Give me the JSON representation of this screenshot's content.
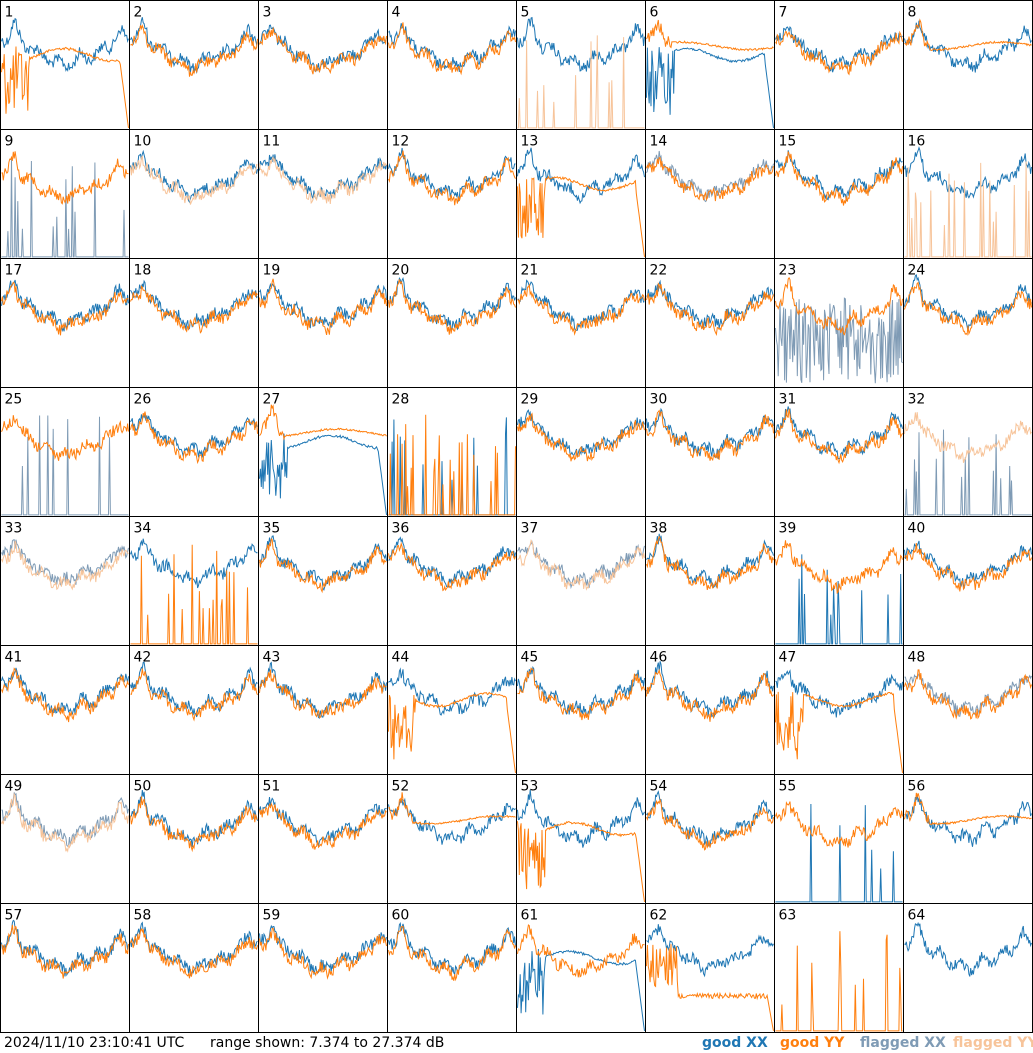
{
  "footer": {
    "timestamp": "2024/11/10 23:10:41 UTC",
    "range": "range shown: 7.374 to 27.374 dB"
  },
  "legend": [
    {
      "key": "good_xx",
      "label": "good XX",
      "color": "#1f77b4"
    },
    {
      "key": "good_yy",
      "label": "good YY",
      "color": "#ff7f0e"
    },
    {
      "key": "flagged_xx",
      "label": "flagged XX",
      "color": "#7f9bb5"
    },
    {
      "key": "flagged_yy",
      "label": "flagged YY",
      "color": "#f7c49a"
    }
  ],
  "chart_data": {
    "type": "line",
    "panel_grid": {
      "rows": 8,
      "cols": 8
    },
    "ylim": [
      7.374,
      27.374
    ],
    "y_unit": "dB",
    "panels": [
      {
        "id": "1",
        "xx": "good",
        "yy": "good",
        "xx_shape": "normal",
        "yy_shape": "rolloff"
      },
      {
        "id": "2",
        "xx": "good",
        "yy": "good",
        "xx_shape": "normal",
        "yy_shape": "normal"
      },
      {
        "id": "3",
        "xx": "good",
        "yy": "good",
        "xx_shape": "normal",
        "yy_shape": "normal"
      },
      {
        "id": "4",
        "xx": "good",
        "yy": "good",
        "xx_shape": "normal",
        "yy_shape": "normal"
      },
      {
        "id": "5",
        "xx": "good",
        "yy": "flagged",
        "xx_shape": "normal",
        "yy_shape": "spikes"
      },
      {
        "id": "6",
        "xx": "good",
        "yy": "good",
        "xx_shape": "rolloff",
        "yy_shape": "flat"
      },
      {
        "id": "7",
        "xx": "good",
        "yy": "good",
        "xx_shape": "normal",
        "yy_shape": "normal"
      },
      {
        "id": "8",
        "xx": "good",
        "yy": "good",
        "xx_shape": "normal",
        "yy_shape": "flat"
      },
      {
        "id": "9",
        "xx": "flagged",
        "yy": "good",
        "xx_shape": "spikes",
        "yy_shape": "normal"
      },
      {
        "id": "10",
        "xx": "good",
        "yy": "flagged",
        "xx_shape": "normal",
        "yy_shape": "normal"
      },
      {
        "id": "11",
        "xx": "good",
        "yy": "flagged",
        "xx_shape": "normal",
        "yy_shape": "normal"
      },
      {
        "id": "12",
        "xx": "good",
        "yy": "good",
        "xx_shape": "normal",
        "yy_shape": "normal"
      },
      {
        "id": "13",
        "xx": "good",
        "yy": "good",
        "xx_shape": "normal",
        "yy_shape": "rolloff"
      },
      {
        "id": "14",
        "xx": "flagged",
        "yy": "good",
        "xx_shape": "normal",
        "yy_shape": "normal"
      },
      {
        "id": "15",
        "xx": "good",
        "yy": "good",
        "xx_shape": "normal",
        "yy_shape": "normal"
      },
      {
        "id": "16",
        "xx": "good",
        "yy": "flagged",
        "xx_shape": "normal",
        "yy_shape": "spikes"
      },
      {
        "id": "17",
        "xx": "good",
        "yy": "good",
        "xx_shape": "normal",
        "yy_shape": "normal"
      },
      {
        "id": "18",
        "xx": "good",
        "yy": "good",
        "xx_shape": "normal",
        "yy_shape": "normal"
      },
      {
        "id": "19",
        "xx": "good",
        "yy": "good",
        "xx_shape": "normal",
        "yy_shape": "normal"
      },
      {
        "id": "20",
        "xx": "good",
        "yy": "good",
        "xx_shape": "normal",
        "yy_shape": "normal"
      },
      {
        "id": "21",
        "xx": "good",
        "yy": "good",
        "xx_shape": "normal",
        "yy_shape": "normal"
      },
      {
        "id": "22",
        "xx": "good",
        "yy": "good",
        "xx_shape": "normal",
        "yy_shape": "normal"
      },
      {
        "id": "23",
        "xx": "flagged",
        "yy": "good",
        "xx_shape": "noise",
        "yy_shape": "normal"
      },
      {
        "id": "24",
        "xx": "good",
        "yy": "good",
        "xx_shape": "normal",
        "yy_shape": "normal"
      },
      {
        "id": "25",
        "xx": "flagged",
        "yy": "good",
        "xx_shape": "spikes",
        "yy_shape": "normal"
      },
      {
        "id": "26",
        "xx": "good",
        "yy": "good",
        "xx_shape": "normal",
        "yy_shape": "normal"
      },
      {
        "id": "27",
        "xx": "good",
        "yy": "good",
        "xx_shape": "rolloff",
        "yy_shape": "flat"
      },
      {
        "id": "28",
        "xx": "good",
        "yy": "good",
        "xx_shape": "spikes",
        "yy_shape": "spikes"
      },
      {
        "id": "29",
        "xx": "good",
        "yy": "good",
        "xx_shape": "normal",
        "yy_shape": "normal"
      },
      {
        "id": "30",
        "xx": "good",
        "yy": "good",
        "xx_shape": "normal",
        "yy_shape": "normal"
      },
      {
        "id": "31",
        "xx": "good",
        "yy": "good",
        "xx_shape": "normal",
        "yy_shape": "normal"
      },
      {
        "id": "32",
        "xx": "flagged",
        "yy": "flagged",
        "xx_shape": "spikes",
        "yy_shape": "normal"
      },
      {
        "id": "33",
        "xx": "flagged",
        "yy": "flagged",
        "xx_shape": "normal",
        "yy_shape": "normal"
      },
      {
        "id": "34",
        "xx": "good",
        "yy": "good",
        "xx_shape": "normal",
        "yy_shape": "spikes"
      },
      {
        "id": "35",
        "xx": "good",
        "yy": "good",
        "xx_shape": "normal",
        "yy_shape": "normal"
      },
      {
        "id": "36",
        "xx": "good",
        "yy": "good",
        "xx_shape": "normal",
        "yy_shape": "normal"
      },
      {
        "id": "37",
        "xx": "flagged",
        "yy": "flagged",
        "xx_shape": "normal",
        "yy_shape": "normal"
      },
      {
        "id": "38",
        "xx": "good",
        "yy": "good",
        "xx_shape": "normal",
        "yy_shape": "normal"
      },
      {
        "id": "39",
        "xx": "good",
        "yy": "good",
        "xx_shape": "spikes",
        "yy_shape": "normal"
      },
      {
        "id": "40",
        "xx": "good",
        "yy": "good",
        "xx_shape": "normal",
        "yy_shape": "normal"
      },
      {
        "id": "41",
        "xx": "good",
        "yy": "good",
        "xx_shape": "normal",
        "yy_shape": "normal"
      },
      {
        "id": "42",
        "xx": "good",
        "yy": "good",
        "xx_shape": "normal",
        "yy_shape": "normal"
      },
      {
        "id": "43",
        "xx": "good",
        "yy": "good",
        "xx_shape": "normal",
        "yy_shape": "normal"
      },
      {
        "id": "44",
        "xx": "good",
        "yy": "good",
        "xx_shape": "normal",
        "yy_shape": "rolloff"
      },
      {
        "id": "45",
        "xx": "good",
        "yy": "good",
        "xx_shape": "normal",
        "yy_shape": "normal"
      },
      {
        "id": "46",
        "xx": "good",
        "yy": "good",
        "xx_shape": "normal",
        "yy_shape": "normal"
      },
      {
        "id": "47",
        "xx": "good",
        "yy": "good",
        "xx_shape": "normal",
        "yy_shape": "rolloff"
      },
      {
        "id": "48",
        "xx": "flagged",
        "yy": "good",
        "xx_shape": "normal",
        "yy_shape": "normal"
      },
      {
        "id": "49",
        "xx": "flagged",
        "yy": "flagged",
        "xx_shape": "normal",
        "yy_shape": "normal"
      },
      {
        "id": "50",
        "xx": "good",
        "yy": "good",
        "xx_shape": "normal",
        "yy_shape": "normal"
      },
      {
        "id": "51",
        "xx": "good",
        "yy": "good",
        "xx_shape": "normal",
        "yy_shape": "normal"
      },
      {
        "id": "52",
        "xx": "good",
        "yy": "good",
        "xx_shape": "normal",
        "yy_shape": "flat"
      },
      {
        "id": "53",
        "xx": "good",
        "yy": "good",
        "xx_shape": "normal",
        "yy_shape": "rolloff"
      },
      {
        "id": "54",
        "xx": "good",
        "yy": "good",
        "xx_shape": "normal",
        "yy_shape": "normal"
      },
      {
        "id": "55",
        "xx": "good",
        "yy": "good",
        "xx_shape": "spikes",
        "yy_shape": "normal"
      },
      {
        "id": "56",
        "xx": "good",
        "yy": "good",
        "xx_shape": "normal",
        "yy_shape": "flat"
      },
      {
        "id": "57",
        "xx": "good",
        "yy": "good",
        "xx_shape": "normal",
        "yy_shape": "normal"
      },
      {
        "id": "58",
        "xx": "good",
        "yy": "good",
        "xx_shape": "normal",
        "yy_shape": "normal"
      },
      {
        "id": "59",
        "xx": "good",
        "yy": "good",
        "xx_shape": "normal",
        "yy_shape": "normal"
      },
      {
        "id": "60",
        "xx": "good",
        "yy": "good",
        "xx_shape": "normal",
        "yy_shape": "normal"
      },
      {
        "id": "61",
        "xx": "good",
        "yy": "good",
        "xx_shape": "rolloff",
        "yy_shape": "normal"
      },
      {
        "id": "62",
        "xx": "good",
        "yy": "good",
        "xx_shape": "normal",
        "yy_shape": "low"
      },
      {
        "id": "63",
        "xx": "good",
        "yy": "good",
        "xx_shape": "none",
        "yy_shape": "spikes"
      },
      {
        "id": "64",
        "xx": "good",
        "yy": "good",
        "xx_shape": "normal",
        "yy_shape": "none"
      }
    ]
  }
}
